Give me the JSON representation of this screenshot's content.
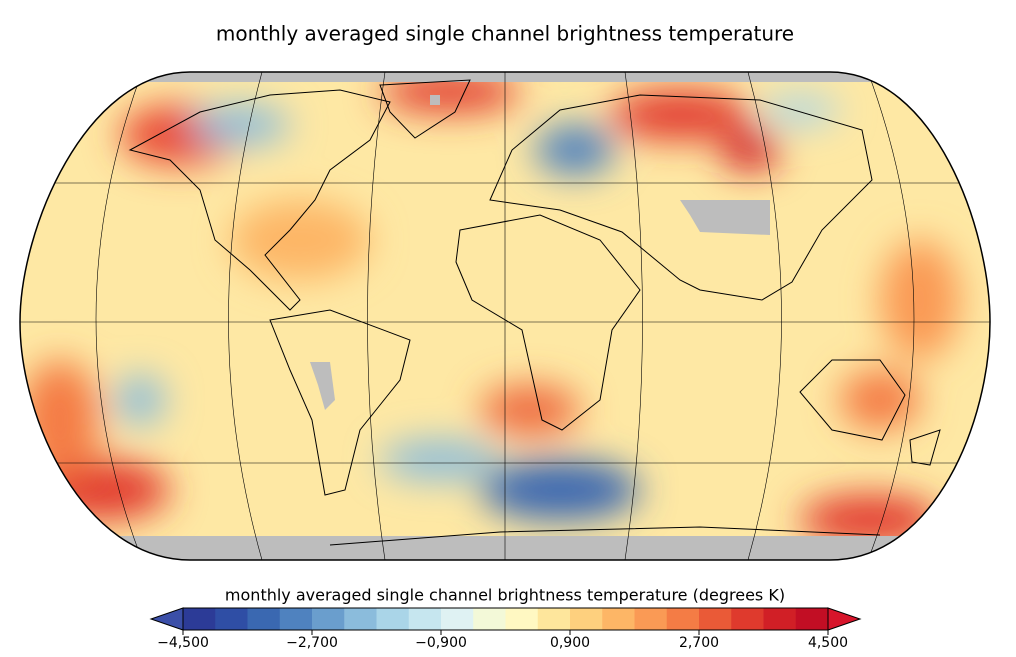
{
  "chart_data": {
    "type": "map",
    "title": "monthly averaged single channel brightness temperature",
    "colorbar": {
      "label": "monthly averaged single channel brightness temperature (degrees K)",
      "clim": [
        -4.5,
        4.5
      ],
      "ticks": [
        {
          "value": -4.5,
          "label": "−4,500"
        },
        {
          "value": -2.7,
          "label": "−2,700"
        },
        {
          "value": -0.9,
          "label": "−0,900"
        },
        {
          "value": 0.9,
          "label": "0,900"
        },
        {
          "value": 2.7,
          "label": "2,700"
        },
        {
          "value": 4.5,
          "label": "4,500"
        }
      ],
      "colors": [
        "#2c3b97",
        "#2f4ea5",
        "#3a68b1",
        "#4f82bf",
        "#6a9ecd",
        "#8bbcdc",
        "#aad5e8",
        "#c6e6ef",
        "#dff2f3",
        "#f3f9d8",
        "#fff8c2",
        "#fee69c",
        "#fed07e",
        "#fdb666",
        "#fa9a55",
        "#f47c45",
        "#ea5a37",
        "#df3a2d",
        "#d11f26",
        "#c20e24"
      ],
      "under_color": "#3b4fa8",
      "over_color": "#d7152b",
      "missing_color": "#bdbdbd"
    }
  }
}
